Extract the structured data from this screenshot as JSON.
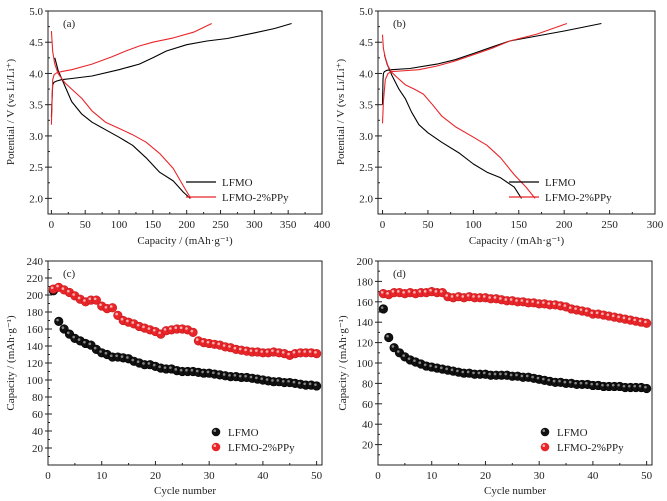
{
  "chart_data": [
    {
      "id": "a",
      "type": "line",
      "panel_label": "(a)",
      "xlabel": "Capacity / (mAh·g⁻¹)",
      "ylabel": "Potential / V (vs Li/Li⁺)",
      "xlim": [
        -5,
        400
      ],
      "ylim": [
        1.75,
        5.0
      ],
      "xticks": [
        0,
        50,
        100,
        150,
        200,
        250,
        300,
        350,
        400
      ],
      "yticks": [
        2.0,
        2.5,
        3.0,
        3.5,
        4.0,
        4.5,
        5.0
      ],
      "ytick_labels": [
        "2.0",
        "2.5",
        "3.0",
        "3.5",
        "4.0",
        "4.5",
        "5.0"
      ],
      "legend": {
        "position": "bottom-right",
        "entries": [
          "LFMO",
          "LFMO-2%PPy"
        ]
      },
      "series": [
        {
          "name": "LFMO",
          "color": "#000000",
          "role": "charge",
          "x": [
            0,
            1,
            2,
            4,
            8,
            15,
            30,
            60,
            100,
            130,
            150,
            170,
            200,
            230,
            260,
            300,
            330,
            355
          ],
          "y": [
            3.3,
            3.6,
            3.82,
            3.86,
            3.88,
            3.9,
            3.92,
            3.96,
            4.06,
            4.15,
            4.25,
            4.36,
            4.46,
            4.52,
            4.56,
            4.65,
            4.72,
            4.8
          ]
        },
        {
          "name": "LFMO",
          "color": "#000000",
          "role": "discharge",
          "x": [
            5,
            10,
            20,
            30,
            45,
            60,
            80,
            100,
            120,
            140,
            160,
            180,
            195,
            205
          ],
          "y": [
            4.25,
            4.05,
            3.8,
            3.55,
            3.35,
            3.22,
            3.1,
            2.98,
            2.85,
            2.65,
            2.42,
            2.28,
            2.1,
            2.0
          ]
        },
        {
          "name": "LFMO-2%PPy",
          "color": "#e8262a",
          "role": "charge",
          "x": [
            0,
            1,
            2,
            4,
            8,
            15,
            30,
            60,
            90,
            110,
            130,
            150,
            180,
            210,
            237
          ],
          "y": [
            3.18,
            3.6,
            3.9,
            3.98,
            4.01,
            4.03,
            4.06,
            4.15,
            4.27,
            4.36,
            4.44,
            4.5,
            4.57,
            4.66,
            4.8
          ]
        },
        {
          "name": "LFMO-2%PPy",
          "color": "#e8262a",
          "role": "discharge",
          "x": [
            0,
            2,
            5,
            10,
            20,
            30,
            45,
            60,
            80,
            100,
            120,
            140,
            160,
            180,
            195,
            206
          ],
          "y": [
            4.68,
            4.35,
            4.15,
            4.0,
            3.85,
            3.75,
            3.6,
            3.4,
            3.22,
            3.12,
            3.02,
            2.9,
            2.72,
            2.48,
            2.2,
            2.0
          ]
        }
      ]
    },
    {
      "id": "b",
      "type": "line",
      "panel_label": "(b)",
      "xlabel": "Capacity / (mAh·g⁻¹)",
      "ylabel": "Potential / V (vs Li/Li⁺)",
      "xlim": [
        -5,
        300
      ],
      "ylim": [
        1.75,
        5.0
      ],
      "xticks": [
        0,
        50,
        100,
        150,
        200,
        250,
        300
      ],
      "yticks": [
        2.0,
        2.5,
        3.0,
        3.5,
        4.0,
        4.5,
        5.0
      ],
      "ytick_labels": [
        "2.0",
        "2.5",
        "3.0",
        "3.5",
        "4.0",
        "4.5",
        "5.0"
      ],
      "legend": {
        "position": "bottom-right",
        "entries": [
          "LFMO",
          "LFMO-2%PPy"
        ]
      },
      "series": [
        {
          "name": "LFMO",
          "color": "#000000",
          "role": "charge",
          "x": [
            0,
            0.5,
            1,
            2,
            5,
            10,
            30,
            60,
            80,
            100,
            120,
            140,
            170,
            200,
            241
          ],
          "y": [
            3.5,
            3.9,
            4.0,
            4.03,
            4.05,
            4.06,
            4.08,
            4.15,
            4.22,
            4.32,
            4.42,
            4.52,
            4.6,
            4.68,
            4.8
          ]
        },
        {
          "name": "LFMO",
          "color": "#000000",
          "role": "discharge",
          "x": [
            2,
            5,
            10,
            18,
            25,
            32,
            40,
            50,
            65,
            85,
            100,
            115,
            130,
            145,
            153
          ],
          "y": [
            4.3,
            4.15,
            3.98,
            3.75,
            3.6,
            3.38,
            3.18,
            3.05,
            2.9,
            2.72,
            2.55,
            2.42,
            2.33,
            2.18,
            2.0
          ]
        },
        {
          "name": "LFMO-2%PPy",
          "color": "#e8262a",
          "role": "charge",
          "x": [
            0,
            1,
            3,
            6,
            10,
            20,
            40,
            60,
            80,
            100,
            120,
            140,
            170,
            203
          ],
          "y": [
            3.2,
            3.55,
            3.9,
            4.0,
            4.03,
            4.04,
            4.06,
            4.12,
            4.2,
            4.3,
            4.4,
            4.52,
            4.63,
            4.8
          ]
        },
        {
          "name": "LFMO-2%PPy",
          "color": "#e8262a",
          "role": "discharge",
          "x": [
            0,
            1,
            3,
            6,
            10,
            15,
            25,
            35,
            45,
            55,
            65,
            80,
            100,
            115,
            130,
            145,
            158,
            168
          ],
          "y": [
            4.62,
            4.4,
            4.25,
            4.12,
            4.02,
            3.95,
            3.82,
            3.75,
            3.67,
            3.5,
            3.32,
            3.15,
            2.98,
            2.85,
            2.65,
            2.38,
            2.18,
            2.0
          ]
        }
      ]
    },
    {
      "id": "c",
      "type": "scatter",
      "panel_label": "(c)",
      "xlabel": "Cycle number",
      "ylabel": "Capacity / (mAh·g⁻¹)",
      "xlim": [
        0,
        51
      ],
      "ylim": [
        0,
        240
      ],
      "xticks": [
        0,
        10,
        20,
        30,
        40,
        50
      ],
      "yticks": [
        20,
        40,
        60,
        80,
        100,
        120,
        140,
        160,
        180,
        200,
        220,
        240
      ],
      "ytick_labels": [
        "20",
        "40",
        "60",
        "80",
        "100",
        "120",
        "140",
        "160",
        "180",
        "200",
        "220",
        "240"
      ],
      "legend": {
        "position": "bottom-right",
        "entries": [
          "LFMO",
          "LFMO-2%PPy"
        ]
      },
      "series": [
        {
          "name": "LFMO",
          "color": "#111111",
          "x": [
            1,
            2,
            3,
            4,
            5,
            6,
            7,
            8,
            9,
            10,
            11,
            12,
            13,
            14,
            15,
            16,
            17,
            18,
            19,
            20,
            21,
            22,
            23,
            24,
            25,
            26,
            27,
            28,
            29,
            30,
            31,
            32,
            33,
            34,
            35,
            36,
            37,
            38,
            39,
            40,
            41,
            42,
            43,
            44,
            45,
            46,
            47,
            48,
            49,
            50
          ],
          "y": [
            205,
            169,
            160,
            154,
            149,
            146,
            143,
            141,
            136,
            132,
            130,
            127,
            127,
            126,
            125,
            122,
            120,
            118,
            118,
            116,
            114,
            113,
            113,
            111,
            110,
            110,
            110,
            109,
            108,
            108,
            107,
            106,
            105,
            104,
            104,
            103,
            103,
            102,
            101,
            100,
            99,
            98,
            98,
            97,
            97,
            96,
            95,
            94,
            94,
            93
          ]
        },
        {
          "name": "LFMO-2%PPy",
          "color": "#e8262a",
          "x": [
            1,
            2,
            3,
            4,
            5,
            6,
            7,
            8,
            9,
            10,
            11,
            12,
            13,
            14,
            15,
            16,
            17,
            18,
            19,
            20,
            21,
            22,
            23,
            24,
            25,
            26,
            27,
            28,
            29,
            30,
            31,
            32,
            33,
            34,
            35,
            36,
            37,
            38,
            39,
            40,
            41,
            42,
            43,
            44,
            45,
            46,
            47,
            48,
            49,
            50
          ],
          "y": [
            207,
            209,
            206,
            203,
            199,
            195,
            192,
            194,
            194,
            187,
            184,
            185,
            176,
            170,
            168,
            166,
            163,
            161,
            159,
            157,
            154,
            158,
            159,
            160,
            160,
            159,
            156,
            146,
            144,
            143,
            142,
            141,
            139,
            138,
            136,
            135,
            134,
            133,
            133,
            132,
            132,
            133,
            132,
            131,
            129,
            131,
            132,
            132,
            132,
            131
          ]
        }
      ]
    },
    {
      "id": "d",
      "type": "scatter",
      "panel_label": "(d)",
      "xlabel": "Cycle number",
      "ylabel": "Capacity / (mAh·g⁻¹)",
      "xlim": [
        0,
        51
      ],
      "ylim": [
        0,
        200
      ],
      "xticks": [
        0,
        10,
        20,
        30,
        40,
        50
      ],
      "yticks": [
        20,
        40,
        60,
        80,
        100,
        120,
        140,
        160,
        180,
        200
      ],
      "ytick_labels": [
        "20",
        "40",
        "60",
        "80",
        "100",
        "120",
        "140",
        "160",
        "180",
        "200"
      ],
      "legend": {
        "position": "bottom-right",
        "entries": [
          "LFMO",
          "LFMO-2%PPy"
        ]
      },
      "series": [
        {
          "name": "LFMO",
          "color": "#111111",
          "x": [
            1,
            2,
            3,
            4,
            5,
            6,
            7,
            8,
            9,
            10,
            11,
            12,
            13,
            14,
            15,
            16,
            17,
            18,
            19,
            20,
            21,
            22,
            23,
            24,
            25,
            26,
            27,
            28,
            29,
            30,
            31,
            32,
            33,
            34,
            35,
            36,
            37,
            38,
            39,
            40,
            41,
            42,
            43,
            44,
            45,
            46,
            47,
            48,
            49,
            50
          ],
          "y": [
            153,
            125,
            115,
            110,
            106,
            103,
            101,
            99,
            97,
            96,
            95,
            94,
            93,
            92,
            91,
            90,
            90,
            89,
            89,
            89,
            88,
            88,
            88,
            88,
            87,
            87,
            86,
            86,
            85,
            84,
            83,
            82,
            81,
            81,
            80,
            80,
            79,
            79,
            79,
            78,
            78,
            77,
            77,
            77,
            77,
            76,
            76,
            76,
            76,
            75
          ]
        },
        {
          "name": "LFMO-2%PPy",
          "color": "#e8262a",
          "x": [
            1,
            2,
            3,
            4,
            5,
            6,
            7,
            8,
            9,
            10,
            11,
            12,
            13,
            14,
            15,
            16,
            17,
            18,
            19,
            20,
            21,
            22,
            23,
            24,
            25,
            26,
            27,
            28,
            29,
            30,
            31,
            32,
            33,
            34,
            35,
            36,
            37,
            38,
            39,
            40,
            41,
            42,
            43,
            44,
            45,
            46,
            47,
            48,
            49,
            50
          ],
          "y": [
            168,
            167,
            169,
            169,
            168,
            169,
            168,
            169,
            169,
            170,
            169,
            169,
            165,
            164,
            165,
            164,
            165,
            164,
            164,
            164,
            163,
            163,
            162,
            161,
            161,
            160,
            160,
            159,
            159,
            158,
            158,
            157,
            157,
            156,
            155,
            153,
            152,
            151,
            150,
            148,
            148,
            147,
            146,
            145,
            144,
            143,
            142,
            141,
            140,
            139
          ]
        }
      ]
    }
  ]
}
